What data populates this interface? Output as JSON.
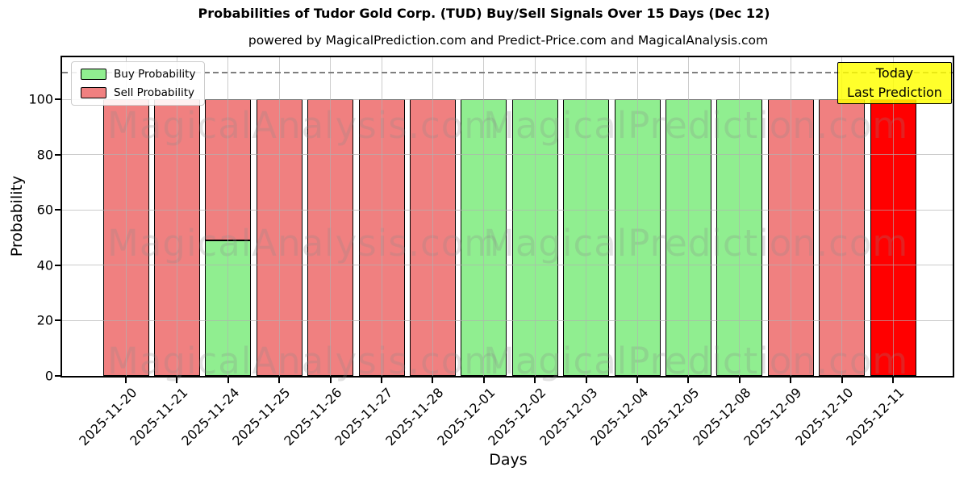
{
  "title": "Probabilities of Tudor Gold Corp. (TUD) Buy/Sell Signals Over 15 Days (Dec 12)",
  "subtitle": "powered by MagicalPrediction.com and Predict-Price.com and MagicalAnalysis.com",
  "legend": {
    "items": [
      {
        "label": "Buy Probability",
        "color": "#90EE90"
      },
      {
        "label": "Sell Probability",
        "color": "#F08080"
      }
    ]
  },
  "annotation_box": {
    "lines": [
      "Today",
      "Last Prediction"
    ],
    "bg": "#FFFF00",
    "border": "#000000"
  },
  "watermarks": {
    "left": "MagicalAnalysis.com",
    "right": "MagicalPrediction.com",
    "color": "#8a8a8a",
    "opacity": 0.24
  },
  "chart_data": {
    "type": "bar",
    "stacked": true,
    "title": "Probabilities of Tudor Gold Corp. (TUD) Buy/Sell Signals Over 15 Days (Dec 12)",
    "xlabel": "Days",
    "ylabel": "Probability",
    "ylim": [
      0,
      115
    ],
    "yticks": [
      0,
      20,
      40,
      60,
      80,
      100
    ],
    "grid": true,
    "grid_color": "#b0b0b0",
    "legend_position": "upper left",
    "dashed_line": {
      "y": 110,
      "style": "dashed",
      "color": "#7f7f7f"
    },
    "categories": [
      "2025-11-20",
      "2025-11-21",
      "2025-11-24",
      "2025-11-25",
      "2025-11-26",
      "2025-11-27",
      "2025-11-28",
      "2025-12-01",
      "2025-12-02",
      "2025-12-03",
      "2025-12-04",
      "2025-12-05",
      "2025-12-08",
      "2025-12-09",
      "2025-12-10",
      "2025-12-11"
    ],
    "series": [
      {
        "name": "Buy Probability",
        "color": "#90EE90",
        "values": [
          0,
          0,
          49,
          0,
          0,
          0,
          0,
          100,
          100,
          100,
          100,
          100,
          100,
          0,
          0,
          0
        ]
      },
      {
        "name": "Sell Probability",
        "color": "#F08080",
        "values": [
          100,
          100,
          51,
          100,
          100,
          100,
          100,
          0,
          0,
          0,
          0,
          0,
          0,
          100,
          100,
          0
        ]
      },
      {
        "name": "Last Prediction (Sell)",
        "color": "#FF0000",
        "values": [
          0,
          0,
          0,
          0,
          0,
          0,
          0,
          0,
          0,
          0,
          0,
          0,
          0,
          0,
          0,
          100
        ]
      }
    ]
  }
}
